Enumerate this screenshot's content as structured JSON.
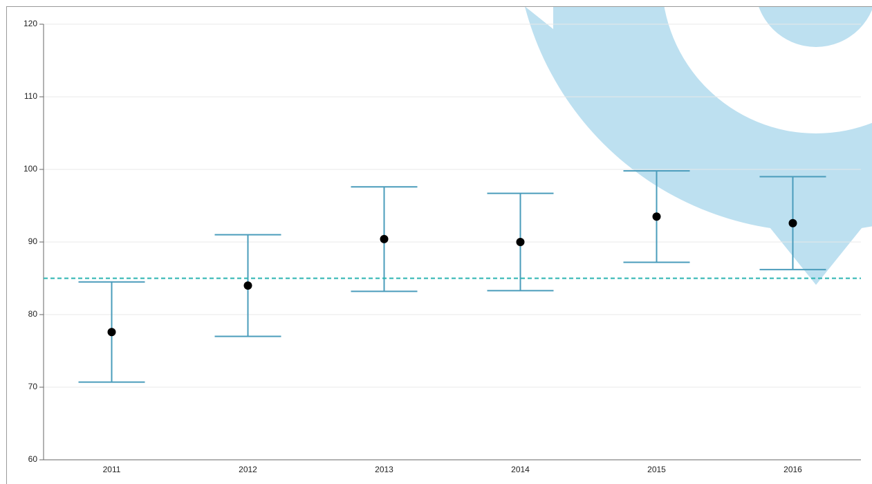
{
  "chart_data": {
    "type": "errorbar",
    "categories": [
      "2011",
      "2012",
      "2013",
      "2014",
      "2015",
      "2016"
    ],
    "values": [
      77.6,
      84.0,
      90.4,
      90.0,
      93.5,
      92.6
    ],
    "errors": [
      6.9,
      7.0,
      7.2,
      6.7,
      6.3,
      6.4
    ],
    "color": "#4a9cbb",
    "marker_color": "#000000",
    "reference_line": 85,
    "reference_color": "#2ab3b0",
    "ylim": [
      60,
      120
    ],
    "yticks": [
      60,
      70,
      80,
      90,
      100,
      110,
      120
    ],
    "grid": true
  }
}
